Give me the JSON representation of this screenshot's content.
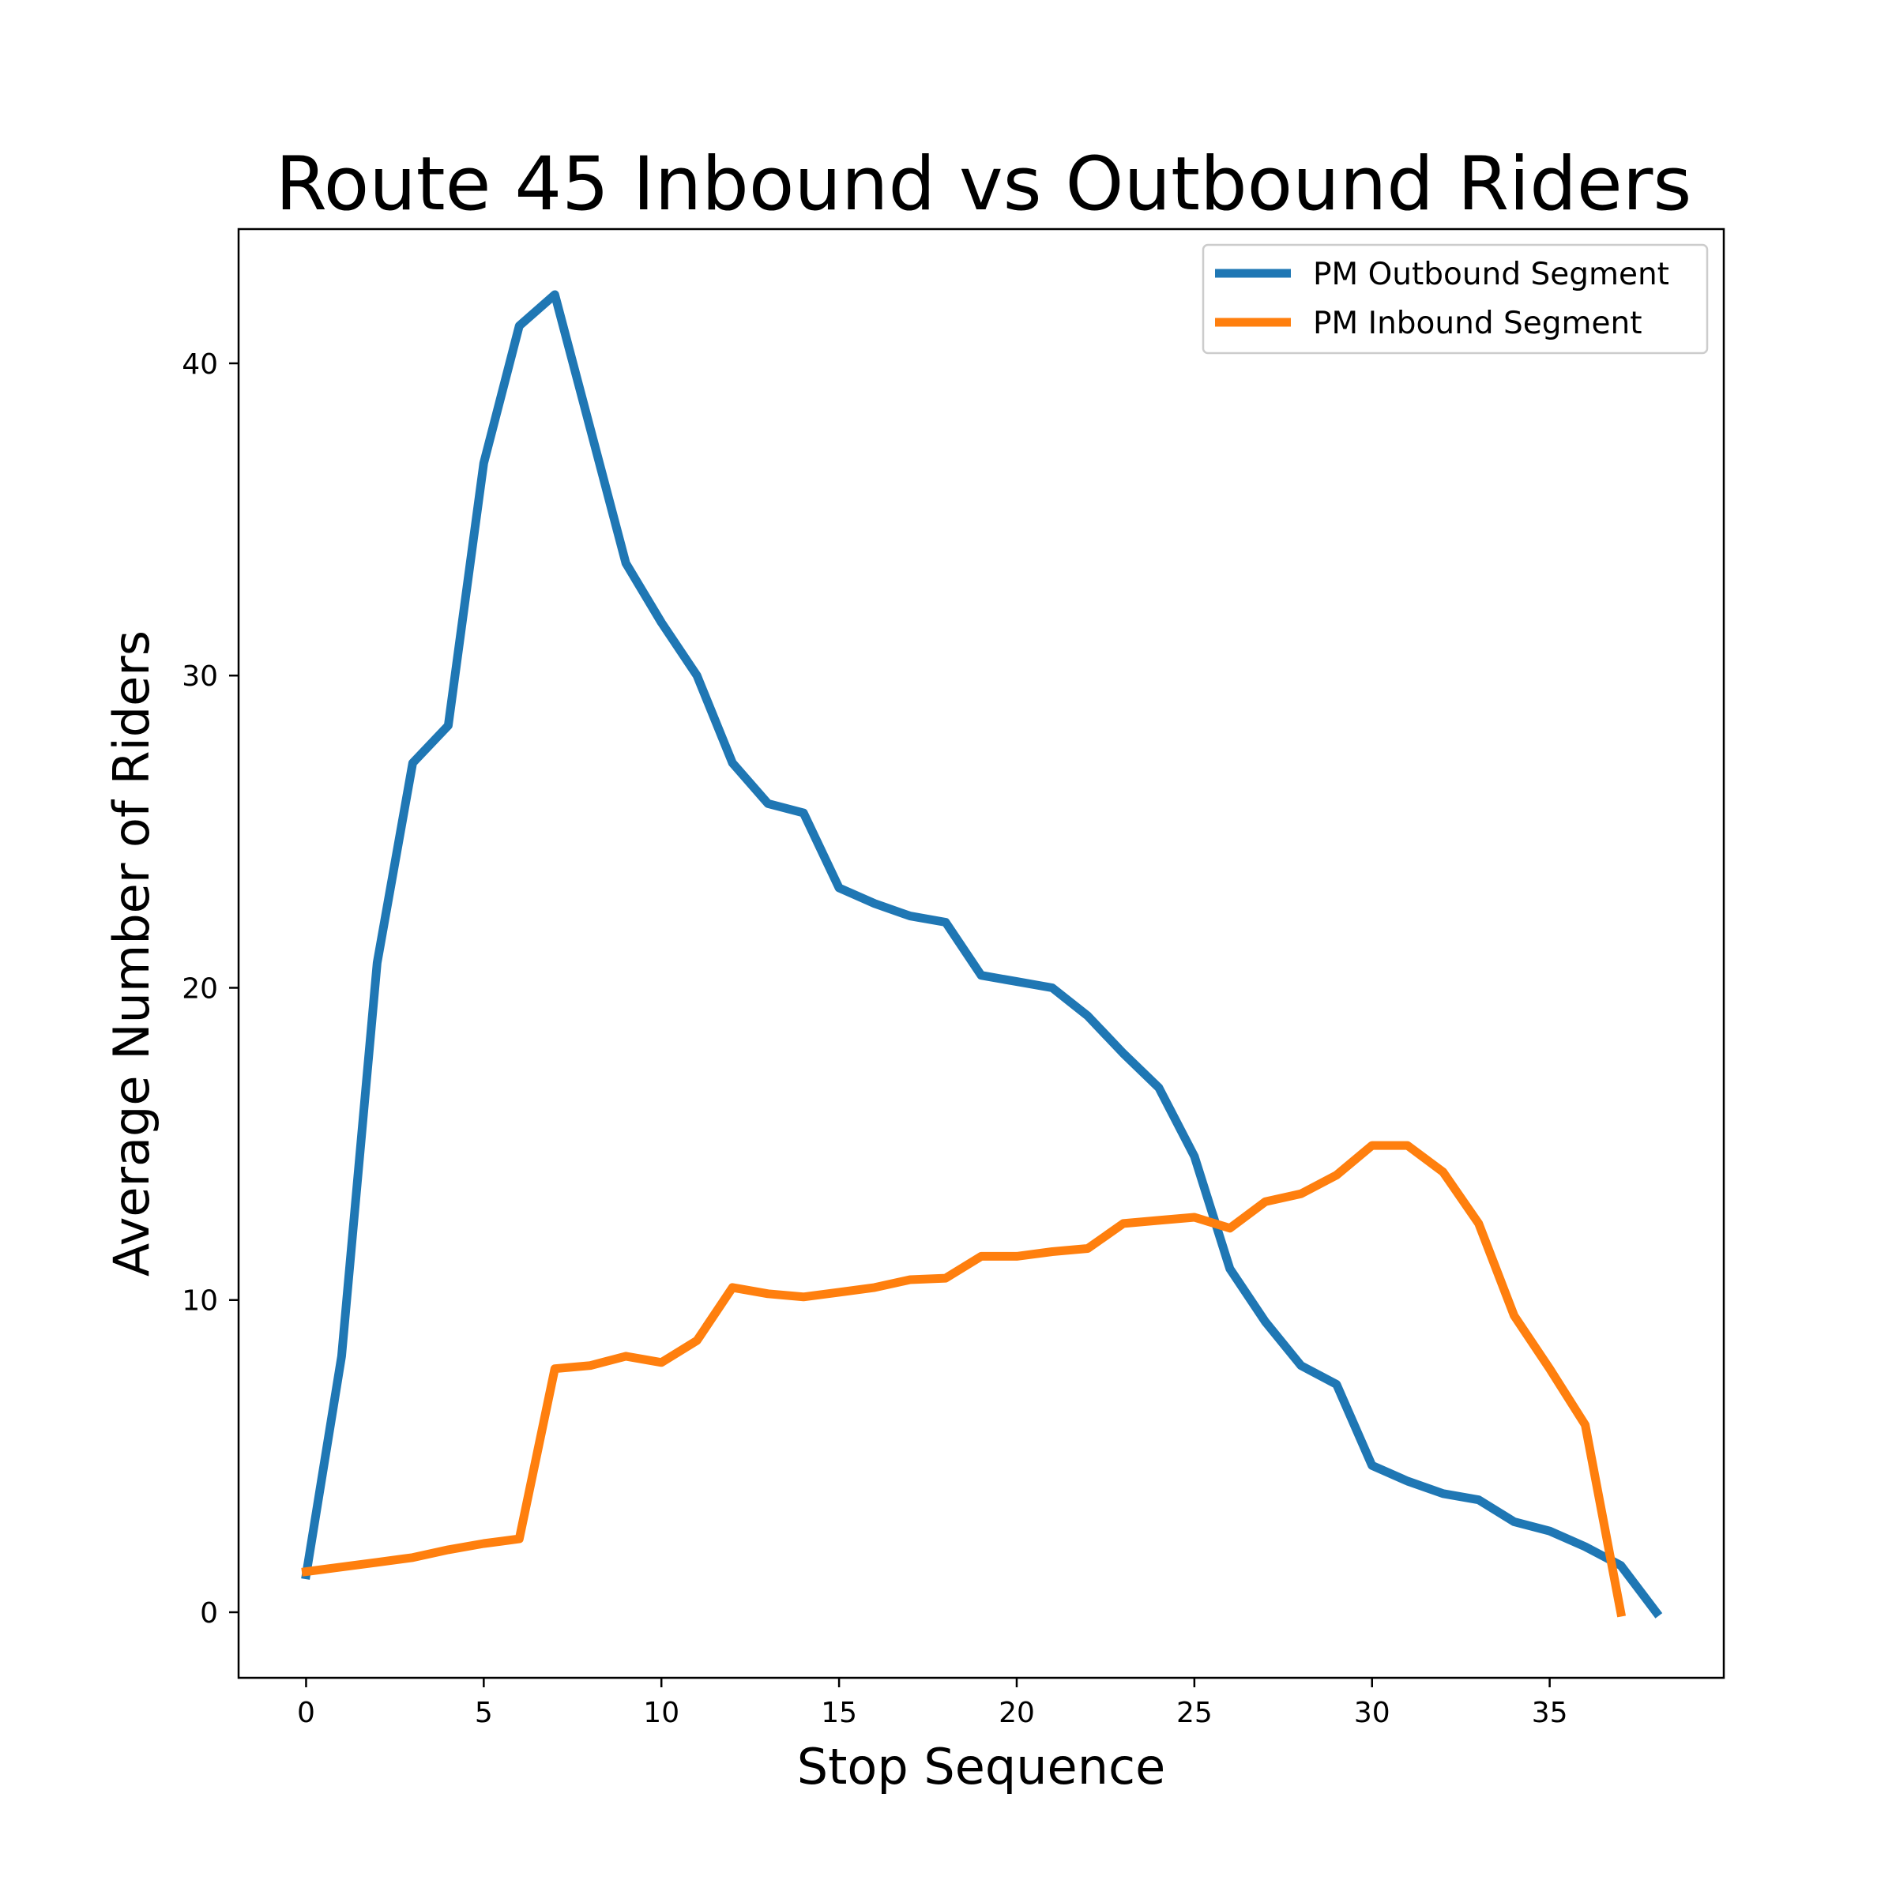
{
  "chart_data": {
    "type": "line",
    "title": "Route 45 Inbound vs Outbound Riders",
    "xlabel": "Stop Sequence",
    "ylabel": "Average Number of Riders",
    "xlim": [
      -1.9,
      39.9
    ],
    "ylim": [
      -2.1,
      44.3
    ],
    "xticks": [
      0,
      5,
      10,
      15,
      20,
      25,
      30,
      35
    ],
    "yticks": [
      0,
      10,
      20,
      30,
      40
    ],
    "grid": false,
    "legend_position": "upper right",
    "series": [
      {
        "name": "PM Outbound Segment",
        "color": "#1f77b4",
        "x": [
          0,
          1,
          2,
          3,
          4,
          5,
          6,
          7,
          8,
          9,
          10,
          11,
          12,
          13,
          14,
          15,
          16,
          17,
          18,
          19,
          20,
          21,
          22,
          23,
          24,
          25,
          26,
          27,
          28,
          29,
          30,
          31,
          32,
          33,
          34,
          35,
          36,
          37,
          38
        ],
        "values": [
          1.2,
          8.2,
          20.8,
          27.2,
          28.4,
          36.8,
          41.2,
          42.2,
          37.9,
          33.6,
          31.7,
          30.0,
          27.2,
          25.9,
          25.6,
          23.2,
          22.7,
          22.3,
          22.1,
          20.4,
          20.2,
          20.0,
          19.1,
          17.9,
          16.8,
          14.6,
          11.0,
          9.3,
          7.9,
          7.3,
          4.7,
          4.2,
          3.8,
          3.6,
          2.9,
          2.6,
          2.1,
          1.5,
          0.0
        ]
      },
      {
        "name": "PM Inbound Segment",
        "color": "#ff7f0e",
        "x": [
          0,
          1,
          2,
          3,
          4,
          5,
          6,
          7,
          8,
          9,
          10,
          11,
          12,
          13,
          14,
          15,
          16,
          17,
          18,
          19,
          20,
          21,
          22,
          23,
          24,
          25,
          26,
          27,
          28,
          29,
          30,
          31,
          32,
          33,
          34,
          35,
          36,
          37
        ],
        "values": [
          1.3,
          1.45,
          1.6,
          1.75,
          2.0,
          2.2,
          2.35,
          7.8,
          7.9,
          8.2,
          8.0,
          8.7,
          10.4,
          10.2,
          10.1,
          10.25,
          10.4,
          10.65,
          10.7,
          11.4,
          11.4,
          11.55,
          11.65,
          12.45,
          12.55,
          12.65,
          12.3,
          13.15,
          13.4,
          14.0,
          14.95,
          14.95,
          14.1,
          12.45,
          9.5,
          7.8,
          6.0,
          0.0
        ]
      }
    ]
  }
}
